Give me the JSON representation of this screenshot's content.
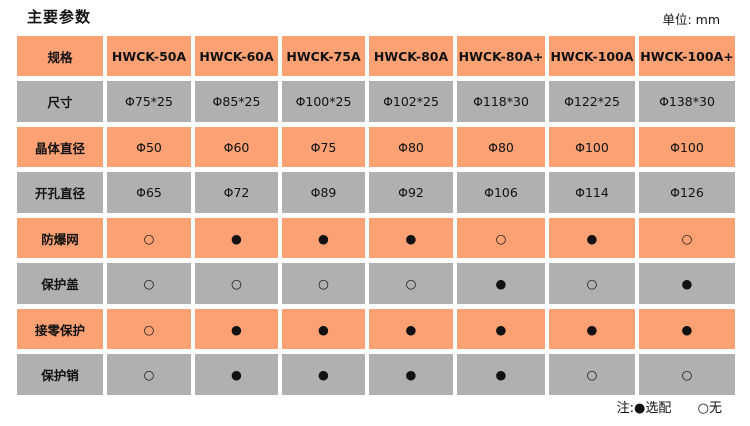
{
  "title": "主要参数",
  "unit": "单位: mm",
  "table": {
    "rows": [
      {
        "label": "规格",
        "style": "orange",
        "header": true,
        "cells": [
          "HWCK-50A",
          "HWCK-60A",
          "HWCK-75A",
          "HWCK-80A",
          "HWCK-80A+",
          "HWCK-100A",
          "HWCK-100A+"
        ]
      },
      {
        "label": "尺寸",
        "style": "gray",
        "cells": [
          "Φ75*25",
          "Φ85*25",
          "Φ100*25",
          "Φ102*25",
          "Φ118*30",
          "Φ122*25",
          "Φ138*30"
        ]
      },
      {
        "label": "晶体直径",
        "style": "orange",
        "cells": [
          "Φ50",
          "Φ60",
          "Φ75",
          "Φ80",
          "Φ80",
          "Φ100",
          "Φ100"
        ]
      },
      {
        "label": "开孔直径",
        "style": "gray",
        "cells": [
          "Φ65",
          "Φ72",
          "Φ89",
          "Φ92",
          "Φ106",
          "Φ114",
          "Φ126"
        ]
      },
      {
        "label": "防爆网",
        "style": "orange",
        "cells": [
          "○",
          "●",
          "●",
          "●",
          "○",
          "●",
          "○"
        ]
      },
      {
        "label": "保护盖",
        "style": "gray",
        "cells": [
          "○",
          "○",
          "○",
          "○",
          "●",
          "○",
          "●"
        ]
      },
      {
        "label": "接零保护",
        "style": "orange",
        "cells": [
          "○",
          "●",
          "●",
          "●",
          "●",
          "●",
          "●"
        ]
      },
      {
        "label": "保护销",
        "style": "gray",
        "cells": [
          "○",
          "●",
          "●",
          "●",
          "●",
          "○",
          "○"
        ]
      }
    ]
  },
  "note": {
    "prefix": "注:",
    "optional": "●选配",
    "none": "○无"
  },
  "colors": {
    "orange": "#fca173",
    "gray": "#b0b0b0"
  }
}
